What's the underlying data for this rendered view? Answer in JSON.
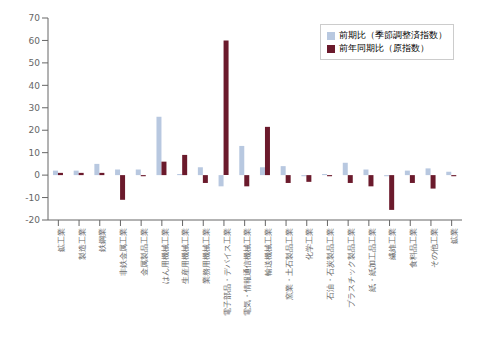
{
  "chart_data": {
    "type": "bar",
    "categories": [
      "鉱工業",
      "製造工業",
      "鉄鋼業",
      "非鉄金属工業",
      "金属製品工業",
      "はん用機械工業",
      "生産用機械工業",
      "業務用機械工業",
      "電子部品・デバイス工業",
      "電気・情報通信機械工業",
      "輸送機械工業",
      "窯業・土石製品工業",
      "化学工業",
      "石油・石炭製品工業",
      "プラスチック製品工業",
      "紙・紙加工品工業",
      "繊維工業",
      "食料品工業",
      "その他工業",
      "鉱業"
    ],
    "series": [
      {
        "name": "前期比（季節調整済指数）",
        "color": "#b8c8e0",
        "values": [
          2.0,
          2.0,
          5.0,
          2.5,
          2.5,
          26.0,
          0.5,
          3.5,
          -5.0,
          13.0,
          3.5,
          4.0,
          -0.5,
          0.5,
          5.5,
          2.5,
          -0.5,
          2.0,
          3.0,
          1.5
        ]
      },
      {
        "name": "前年同期比（原指数）",
        "color": "#6b1a2c",
        "values": [
          1.0,
          1.0,
          1.0,
          -11.0,
          -0.5,
          6.0,
          9.0,
          -3.5,
          60.0,
          -5.0,
          21.5,
          -3.5,
          -3.0,
          -0.5,
          -3.5,
          -5.0,
          -15.5,
          -3.5,
          -6.0,
          -0.5
        ]
      }
    ],
    "ylim": [
      -20,
      70
    ],
    "yticks": [
      -20,
      -10,
      0,
      10,
      20,
      30,
      40,
      50,
      60,
      70
    ],
    "grid": false,
    "legend": "upper right"
  }
}
